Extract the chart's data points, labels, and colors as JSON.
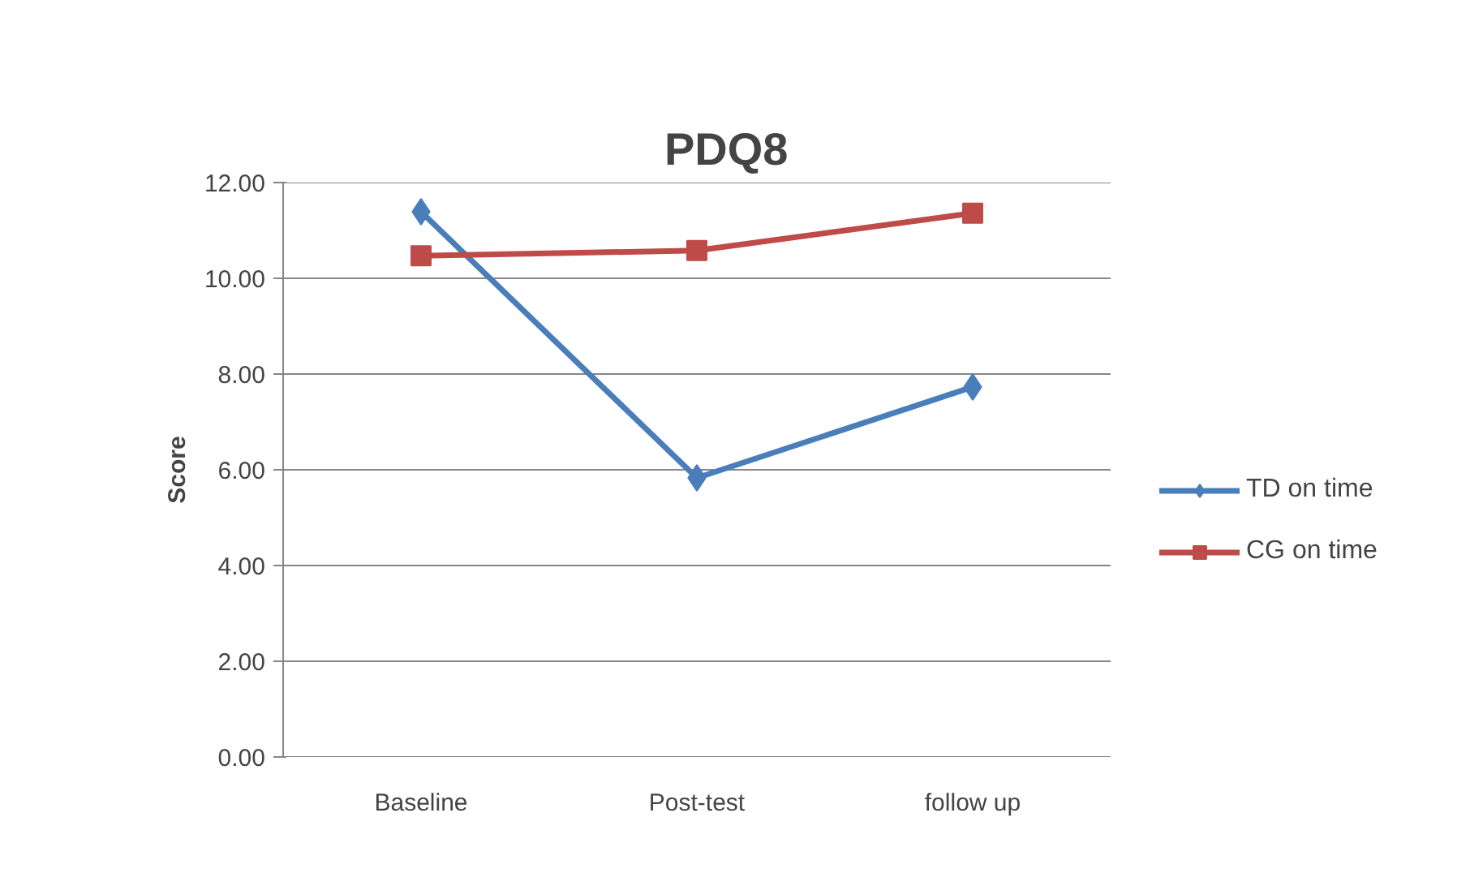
{
  "chart_data": {
    "type": "line",
    "title": "PDQ8",
    "ylabel": "Score",
    "categories": [
      "Baseline",
      "Post-test",
      "follow up"
    ],
    "series": [
      {
        "name": "TD on time",
        "color": "#4a7ebb",
        "marker": "diamond",
        "values": [
          11.39,
          5.83,
          7.73
        ]
      },
      {
        "name": "CG on time",
        "color": "#be4b48",
        "marker": "square",
        "values": [
          10.47,
          10.58,
          11.36
        ]
      }
    ],
    "ylim": [
      0,
      12
    ],
    "yticks": [
      {
        "value": 0,
        "label": "0.00"
      },
      {
        "value": 2,
        "label": "2.00"
      },
      {
        "value": 4,
        "label": "4.00"
      },
      {
        "value": 6,
        "label": "6.00"
      },
      {
        "value": 8,
        "label": "8.00"
      },
      {
        "value": 10,
        "label": "10.00"
      },
      {
        "value": 12,
        "label": "12.00"
      }
    ],
    "grid": "y",
    "legend": "right"
  }
}
